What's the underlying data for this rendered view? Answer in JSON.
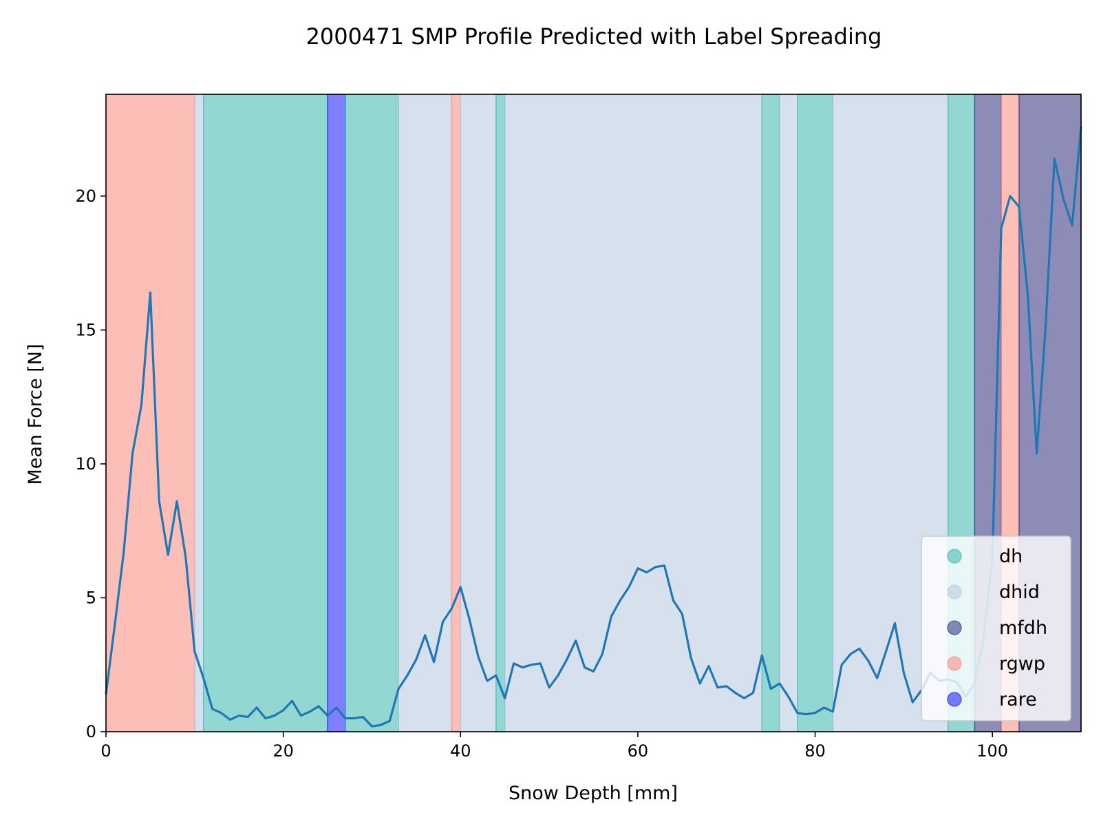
{
  "chart_data": {
    "type": "line",
    "title": "2000471 SMP Profile Predicted with Label Spreading",
    "xlabel": "Snow Depth [mm]",
    "ylabel": "Mean Force [N]",
    "xlim": [
      0,
      110
    ],
    "ylim": [
      0,
      23.8
    ],
    "xticks": [
      0,
      20,
      40,
      60,
      80,
      100
    ],
    "yticks": [
      0,
      5,
      10,
      15,
      20
    ],
    "x_tick_labels": [
      "0",
      "20",
      "40",
      "60",
      "80",
      "100"
    ],
    "y_tick_labels": [
      "0",
      "5",
      "10",
      "15",
      "20"
    ],
    "grid": false,
    "legend_position": "lower-right",
    "line_color": "#1f77b4",
    "classes": [
      {
        "name": "dh",
        "color": "#26b0a6"
      },
      {
        "name": "dhid",
        "color": "#b0c4de"
      },
      {
        "name": "mfdh",
        "color": "#191970"
      },
      {
        "name": "rgwp",
        "color": "#fa8072"
      },
      {
        "name": "rare",
        "color": "#0000ff"
      }
    ],
    "layers": [
      {
        "start": 0,
        "end": 10,
        "label": "rgwp"
      },
      {
        "start": 10,
        "end": 11,
        "label": "dhid"
      },
      {
        "start": 11,
        "end": 25,
        "label": "dh"
      },
      {
        "start": 25,
        "end": 27,
        "label": "rare"
      },
      {
        "start": 27,
        "end": 33,
        "label": "dh"
      },
      {
        "start": 33,
        "end": 39,
        "label": "dhid"
      },
      {
        "start": 39,
        "end": 40,
        "label": "rgwp"
      },
      {
        "start": 40,
        "end": 44,
        "label": "dhid"
      },
      {
        "start": 44,
        "end": 45,
        "label": "dh"
      },
      {
        "start": 45,
        "end": 74,
        "label": "dhid"
      },
      {
        "start": 74,
        "end": 76,
        "label": "dh"
      },
      {
        "start": 76,
        "end": 78,
        "label": "dhid"
      },
      {
        "start": 78,
        "end": 82,
        "label": "dh"
      },
      {
        "start": 82,
        "end": 95,
        "label": "dhid"
      },
      {
        "start": 95,
        "end": 98,
        "label": "dh"
      },
      {
        "start": 98,
        "end": 101,
        "label": "mfdh"
      },
      {
        "start": 101,
        "end": 103,
        "label": "rgwp"
      },
      {
        "start": 103,
        "end": 110,
        "label": "mfdh"
      }
    ],
    "series": [
      {
        "x": [
          0,
          1,
          2,
          3,
          4,
          5,
          6,
          7,
          8,
          9,
          10,
          11,
          12,
          13,
          14,
          15,
          16,
          17,
          18,
          19,
          20,
          21,
          22,
          23,
          24,
          25,
          26,
          27,
          28,
          29,
          30,
          31,
          32,
          33,
          34,
          35,
          36,
          37,
          38,
          39,
          40,
          41,
          42,
          43,
          44,
          45,
          46,
          47,
          48,
          49,
          50,
          51,
          52,
          53,
          54,
          55,
          56,
          57,
          58,
          59,
          60,
          61,
          62,
          63,
          64,
          65,
          66,
          67,
          68,
          69,
          70,
          71,
          72,
          73,
          74,
          75,
          76,
          77,
          78,
          79,
          80,
          81,
          82,
          83,
          84,
          85,
          86,
          87,
          88,
          89,
          90,
          91,
          92,
          93,
          94,
          95,
          96,
          97,
          98,
          99,
          100,
          101,
          102,
          103,
          104,
          105,
          106,
          107,
          108,
          109,
          110
        ],
        "y": [
          1.4,
          4.0,
          6.7,
          10.4,
          12.2,
          16.4,
          8.6,
          6.6,
          8.6,
          6.5,
          3.0,
          2.0,
          0.85,
          0.7,
          0.45,
          0.6,
          0.55,
          0.9,
          0.5,
          0.6,
          0.8,
          1.15,
          0.6,
          0.75,
          0.95,
          0.6,
          0.9,
          0.5,
          0.5,
          0.55,
          0.2,
          0.25,
          0.4,
          1.6,
          2.1,
          2.7,
          3.6,
          2.6,
          4.1,
          4.6,
          5.4,
          4.2,
          2.8,
          1.9,
          2.1,
          1.25,
          2.55,
          2.4,
          2.5,
          2.55,
          1.65,
          2.1,
          2.7,
          3.4,
          2.4,
          2.25,
          2.9,
          4.3,
          4.9,
          5.4,
          6.1,
          5.95,
          6.15,
          6.2,
          4.9,
          4.4,
          2.75,
          1.8,
          2.45,
          1.65,
          1.7,
          1.45,
          1.25,
          1.45,
          2.85,
          1.6,
          1.8,
          1.3,
          0.7,
          0.65,
          0.7,
          0.9,
          0.75,
          2.5,
          2.9,
          3.1,
          2.65,
          2.0,
          3.0,
          4.05,
          2.2,
          1.1,
          1.55,
          2.2,
          1.9,
          1.95,
          1.85,
          1.3,
          1.8,
          3.5,
          6.5,
          18.8,
          20.0,
          19.6,
          16.3,
          10.4,
          15.1,
          21.4,
          19.9,
          18.9,
          22.6
        ]
      }
    ]
  }
}
